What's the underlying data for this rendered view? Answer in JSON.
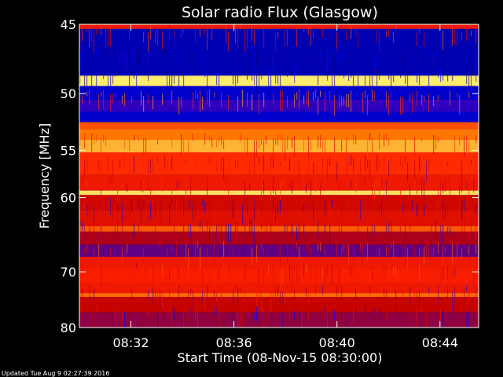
{
  "title": "Solar radio Flux (Glasgow)",
  "footer": "Updated Tue Aug  9 02:27:39 2016",
  "chart_data": {
    "type": "heatmap",
    "title": "Solar radio Flux (Glasgow)",
    "xlabel": "Start Time (08-Nov-15 08:30:00)",
    "ylabel": "Frequency [MHz]",
    "x_range_minutes": [
      0,
      15.5
    ],
    "x_ticks": [
      {
        "minute": 2,
        "label": "08:32"
      },
      {
        "minute": 6,
        "label": "08:36"
      },
      {
        "minute": 10,
        "label": "08:40"
      },
      {
        "minute": 14,
        "label": "08:44"
      }
    ],
    "ylim": [
      45,
      80
    ],
    "y_ticks": [
      45,
      50,
      55,
      60,
      70,
      80
    ],
    "y_scale": "reciprocal",
    "colormap": [
      "#000080",
      "#0000ff",
      "#c00000",
      "#ff2000",
      "#ff8000",
      "#ffff80"
    ],
    "bands": [
      {
        "f0": 45.0,
        "f1": 45.3,
        "level": 0.55
      },
      {
        "f0": 45.3,
        "f1": 48.6,
        "level": 0.08
      },
      {
        "f0": 48.6,
        "f1": 49.4,
        "level": 0.97
      },
      {
        "f0": 49.4,
        "f1": 50.5,
        "level": 0.12
      },
      {
        "f0": 50.5,
        "f1": 51.5,
        "level": 0.25
      },
      {
        "f0": 51.5,
        "f1": 52.4,
        "level": 0.12
      },
      {
        "f0": 52.4,
        "f1": 53.0,
        "level": 0.7
      },
      {
        "f0": 53.0,
        "f1": 54.0,
        "level": 0.78
      },
      {
        "f0": 54.0,
        "f1": 55.2,
        "level": 0.88
      },
      {
        "f0": 55.2,
        "f1": 57.5,
        "level": 0.62
      },
      {
        "f0": 57.5,
        "f1": 59.2,
        "level": 0.55
      },
      {
        "f0": 59.2,
        "f1": 59.7,
        "level": 0.95
      },
      {
        "f0": 59.7,
        "f1": 61.5,
        "level": 0.45
      },
      {
        "f0": 61.5,
        "f1": 63.5,
        "level": 0.5
      },
      {
        "f0": 63.5,
        "f1": 64.2,
        "level": 0.72
      },
      {
        "f0": 64.2,
        "f1": 66.0,
        "level": 0.38
      },
      {
        "f0": 66.0,
        "f1": 67.7,
        "level": 0.3
      },
      {
        "f0": 67.7,
        "f1": 69.5,
        "level": 0.55
      },
      {
        "f0": 69.5,
        "f1": 72.0,
        "level": 0.58
      },
      {
        "f0": 72.0,
        "f1": 73.5,
        "level": 0.55
      },
      {
        "f0": 73.5,
        "f1": 74.2,
        "level": 0.75
      },
      {
        "f0": 74.2,
        "f1": 77.0,
        "level": 0.42
      },
      {
        "f0": 77.0,
        "f1": 80.0,
        "level": 0.35
      }
    ]
  }
}
